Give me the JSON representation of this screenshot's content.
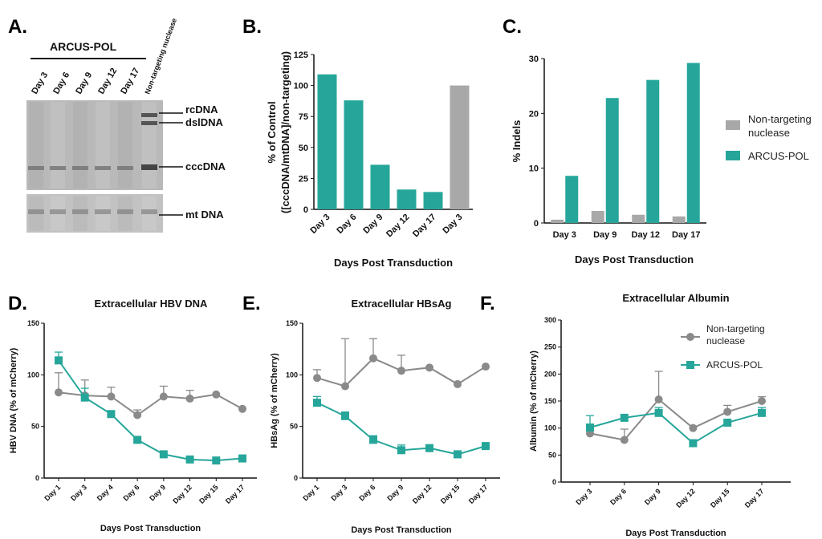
{
  "colors": {
    "teal": "#26a69a",
    "gray": "#a8a8a8",
    "dark_gray": "#8a8a8a",
    "label": "#26a69a"
  },
  "panels": {
    "A": {
      "label": "A.",
      "group_label": "ARCUS-POL",
      "lanes": [
        "Day 3",
        "Day 6",
        "Day 9",
        "Day 12",
        "Day 17",
        "Non-targeting nuclease"
      ],
      "bands": [
        "rcDNA",
        "dslDNA",
        "cccDNA",
        "mt DNA"
      ]
    },
    "B": {
      "label": "B."
    },
    "C": {
      "label": "C."
    },
    "D": {
      "label": "D."
    },
    "E": {
      "label": "E."
    },
    "F": {
      "label": "F."
    }
  },
  "chart_data": [
    {
      "id": "B",
      "type": "bar",
      "categories": [
        "Day 3",
        "Day 6",
        "Day 9",
        "Day 12",
        "Day 17",
        "Day 3"
      ],
      "values": [
        109,
        88,
        36,
        16,
        14,
        100
      ],
      "bar_colors": [
        "teal",
        "teal",
        "teal",
        "teal",
        "teal",
        "gray"
      ],
      "ylabel_lines": [
        "% of Control",
        "([cccDNA/mtDNA]/non-targeting)"
      ],
      "xlabel": "Days Post Transduction",
      "ylim": [
        0,
        125
      ],
      "yticks": [
        0,
        25,
        50,
        75,
        100,
        125
      ]
    },
    {
      "id": "C",
      "type": "bar",
      "categories": [
        "Day 3",
        "Day 9",
        "Day 12",
        "Day 17"
      ],
      "series": [
        {
          "name": "Non-targeting nuclease",
          "color": "gray",
          "values": [
            0.6,
            2.2,
            1.5,
            1.2
          ]
        },
        {
          "name": "ARCUS-POL",
          "color": "teal",
          "values": [
            8.6,
            22.8,
            26.1,
            29.2
          ]
        }
      ],
      "legend_lines": [
        [
          "Non-targeting",
          "nuclease"
        ],
        [
          "ARCUS-POL"
        ]
      ],
      "ylabel": "% Indels",
      "xlabel": "Days Post Transduction",
      "ylim": [
        0,
        30
      ],
      "yticks": [
        0,
        10,
        20,
        30
      ],
      "legend": "right"
    },
    {
      "id": "D",
      "type": "line",
      "title": "Extracellular HBV DNA",
      "categories": [
        "Day 1",
        "Day 3",
        "Day 4",
        "Day 6",
        "Day 9",
        "Day 12",
        "Day 15",
        "Day 17"
      ],
      "series": [
        {
          "name": "Non-targeting nuclease",
          "color": "dark_gray",
          "marker": "circle",
          "values": [
            83,
            80,
            79,
            61,
            79,
            77,
            81,
            67
          ],
          "errors": [
            19,
            15,
            9,
            5,
            10,
            8,
            0,
            0
          ]
        },
        {
          "name": "ARCUS-POL",
          "color": "teal",
          "marker": "square",
          "values": [
            114,
            78,
            62,
            37,
            23,
            18,
            17,
            19
          ],
          "errors": [
            8,
            9,
            0,
            0,
            0,
            0,
            0,
            0
          ]
        }
      ],
      "ylabel": "HBV DNA  (% of mCherry)",
      "xlabel": "Days Post Transduction",
      "ylim": [
        0,
        150
      ],
      "yticks": [
        0,
        50,
        100,
        150
      ]
    },
    {
      "id": "E",
      "type": "line",
      "title": "Extracellular HBsAg",
      "categories": [
        "Day 1",
        "Day 3",
        "Day 6",
        "Day 9",
        "Day 12",
        "Day 15",
        "Day 17"
      ],
      "series": [
        {
          "name": "Non-targeting nuclease",
          "color": "dark_gray",
          "marker": "circle",
          "values": [
            97,
            89,
            116,
            104,
            107,
            91,
            108
          ],
          "errors": [
            8,
            46,
            19,
            15,
            0,
            0,
            0
          ]
        },
        {
          "name": "ARCUS-POL",
          "color": "teal",
          "marker": "square",
          "values": [
            73,
            60,
            37,
            27,
            29,
            23,
            31
          ],
          "errors": [
            6,
            4,
            4,
            5,
            0,
            0,
            0
          ]
        }
      ],
      "ylabel": "HBsAg (% of mCherry)",
      "xlabel": "Days Post Transduction",
      "ylim": [
        0,
        150
      ],
      "yticks": [
        0,
        50,
        100,
        150
      ]
    },
    {
      "id": "F",
      "type": "line",
      "title": "Extracellular Albumin",
      "categories": [
        "Day 3",
        "Day 6",
        "Day 9",
        "Day 12",
        "Day 15",
        "Day 17"
      ],
      "series": [
        {
          "name": "Non-targeting nuclease",
          "color": "dark_gray",
          "marker": "circle",
          "values": [
            90,
            78,
            153,
            100,
            130,
            150
          ],
          "errors": [
            10,
            20,
            52,
            0,
            12,
            8
          ]
        },
        {
          "name": "ARCUS-POL",
          "color": "teal",
          "marker": "square",
          "values": [
            101,
            119,
            128,
            72,
            110,
            128
          ],
          "errors": [
            22,
            0,
            10,
            0,
            0,
            10
          ]
        }
      ],
      "legend_lines": [
        [
          "Non-targeting",
          "nuclease"
        ],
        [
          "ARCUS-POL"
        ]
      ],
      "ylabel": "Albumin (% of mCherry)",
      "xlabel": "Days Post Transduction",
      "ylim": [
        0,
        300
      ],
      "yticks": [
        0,
        50,
        100,
        150,
        200,
        250,
        300
      ],
      "legend": "top-right"
    }
  ]
}
